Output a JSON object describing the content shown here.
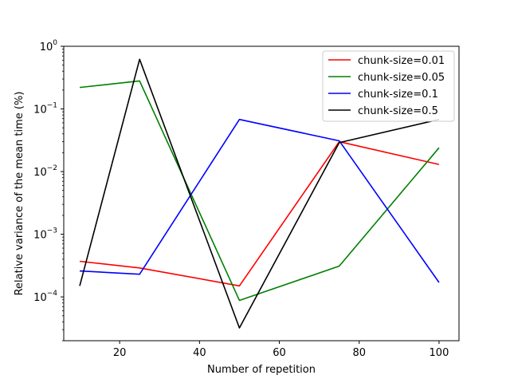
{
  "chart_data": {
    "type": "line",
    "title": "",
    "xlabel": "Number of repetition",
    "ylabel": "Relative variance of the mean time (%)",
    "xlim": [
      6,
      105
    ],
    "ylim": [
      2e-05,
      1.0
    ],
    "yscale": "log",
    "grid": false,
    "legend_position": "top-right",
    "x_ticks": [
      20,
      40,
      60,
      80,
      100
    ],
    "x_tick_labels": [
      "20",
      "40",
      "60",
      "80",
      "100"
    ],
    "y_ticks": [
      0.0001,
      0.001,
      0.01,
      0.1,
      1.0
    ],
    "y_tick_labels": [
      {
        "base": "10",
        "exp": "−4"
      },
      {
        "base": "10",
        "exp": "−3"
      },
      {
        "base": "10",
        "exp": "−2"
      },
      {
        "base": "10",
        "exp": "−1"
      },
      {
        "base": "10",
        "exp": "0"
      }
    ],
    "x": [
      10,
      25,
      50,
      75,
      100
    ],
    "series": [
      {
        "name": "chunk-size=0.01",
        "color": "#ff0000",
        "values": [
          0.00037,
          0.00029,
          0.00015,
          0.03,
          0.013
        ]
      },
      {
        "name": "chunk-size=0.05",
        "color": "#008000",
        "values": [
          0.22,
          0.28,
          8.8e-05,
          0.00031,
          0.024
        ]
      },
      {
        "name": "chunk-size=0.1",
        "color": "#0000ff",
        "values": [
          0.00026,
          0.00023,
          0.068,
          0.031,
          0.00017
        ]
      },
      {
        "name": "chunk-size=0.5",
        "color": "#000000",
        "values": [
          0.00015,
          0.62,
          3.2e-05,
          0.029,
          0.068
        ]
      }
    ]
  }
}
